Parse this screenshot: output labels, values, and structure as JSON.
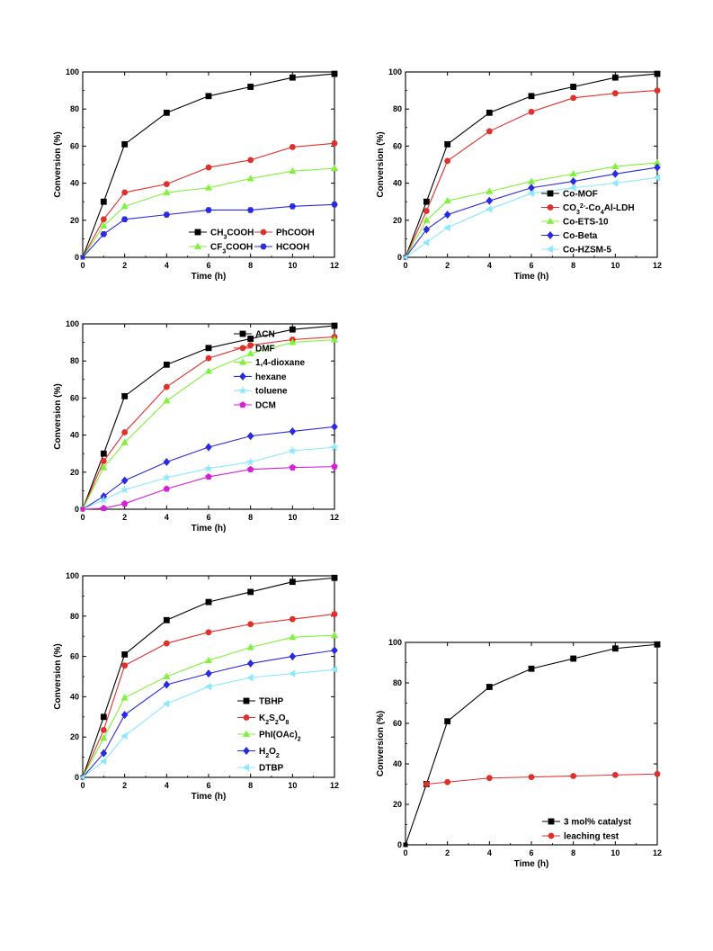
{
  "chart_data": [
    {
      "type": "line",
      "xlabel": "Time (h)",
      "ylabel": "Conversion (%)",
      "xlim": [
        0,
        12
      ],
      "ylim": [
        0,
        100
      ],
      "xticks": [
        "0",
        "2",
        "4",
        "6",
        "8",
        "10",
        "12"
      ],
      "yticks": [
        "0",
        "20",
        "40",
        "60",
        "80",
        "100"
      ],
      "legend_position": "bottom-right",
      "legend_columns": 2,
      "x": [
        0,
        1,
        2,
        4,
        6,
        8,
        10,
        12
      ],
      "series": [
        {
          "name": "CH3COOH",
          "label_parts": [
            [
              "CH",
              ""
            ],
            [
              "3",
              "sub"
            ],
            [
              "COOH",
              ""
            ]
          ],
          "color": "#000000",
          "marker": "square",
          "values": [
            0,
            30,
            61,
            78,
            87,
            92,
            97,
            99
          ]
        },
        {
          "name": "PhCOOH",
          "label_parts": [
            [
              "PhCOOH",
              ""
            ]
          ],
          "color": "#e0302b",
          "marker": "circle",
          "values": [
            0,
            20.5,
            35,
            39.5,
            48.5,
            52.5,
            59.5,
            61.5
          ]
        },
        {
          "name": "CF3COOH",
          "label_parts": [
            [
              "CF",
              ""
            ],
            [
              "3",
              "sub"
            ],
            [
              "COOH",
              ""
            ]
          ],
          "color": "#7ff23a",
          "marker": "triangle",
          "values": [
            0,
            17,
            27.5,
            35,
            37.5,
            42.5,
            46.5,
            48
          ]
        },
        {
          "name": "HCOOH",
          "label_parts": [
            [
              "HCOOH",
              ""
            ]
          ],
          "color": "#2a2ae0",
          "marker": "hexagon",
          "values": [
            0,
            12.5,
            20.5,
            23,
            25.5,
            25.5,
            27.5,
            28.5
          ]
        }
      ]
    },
    {
      "type": "line",
      "xlabel": "Time (h)",
      "ylabel": "Conversion (%)",
      "xlim": [
        0,
        12
      ],
      "ylim": [
        0,
        100
      ],
      "xticks": [
        "0",
        "2",
        "4",
        "6",
        "8",
        "10",
        "12"
      ],
      "yticks": [
        "0",
        "20",
        "40",
        "60",
        "80",
        "100"
      ],
      "legend_position": "bottom-right",
      "legend_columns": 1,
      "x": [
        0,
        1,
        2,
        4,
        6,
        8,
        10,
        12
      ],
      "series": [
        {
          "name": "Co-MOF",
          "label_parts": [
            [
              "Co-MOF",
              ""
            ]
          ],
          "color": "#000000",
          "marker": "square",
          "values": [
            0,
            30,
            61,
            78,
            87,
            92,
            97,
            99
          ]
        },
        {
          "name": "CO32--Co4Al-LDH",
          "label_parts": [
            [
              "CO",
              ""
            ],
            [
              "3",
              "sub"
            ],
            [
              "2-",
              "sup"
            ],
            [
              "-Co",
              ""
            ],
            [
              "4",
              "sub"
            ],
            [
              "Al-LDH",
              ""
            ]
          ],
          "color": "#e0302b",
          "marker": "circle",
          "values": [
            0,
            25,
            52,
            68,
            78.5,
            86,
            88.5,
            90
          ]
        },
        {
          "name": "Co-ETS-10",
          "label_parts": [
            [
              "Co-ETS-10",
              ""
            ]
          ],
          "color": "#7ff23a",
          "marker": "triangle",
          "values": [
            0,
            20,
            30.5,
            35.5,
            41,
            45,
            49,
            51
          ]
        },
        {
          "name": "Co-Beta",
          "label_parts": [
            [
              "Co-Beta",
              ""
            ]
          ],
          "color": "#2a2ae0",
          "marker": "diamond",
          "values": [
            0,
            15,
            23,
            30.5,
            37.5,
            41,
            45,
            48.5
          ]
        },
        {
          "name": "Co-HZSM-5",
          "label_parts": [
            [
              "Co-HZSM-5",
              ""
            ]
          ],
          "color": "#8ae8ff",
          "marker": "triangle-left",
          "values": [
            0,
            8,
            16,
            26,
            34.5,
            37.5,
            40,
            43
          ]
        }
      ]
    },
    {
      "type": "line",
      "xlabel": "Time (h)",
      "ylabel": "Conversion (%)",
      "xlim": [
        0,
        12
      ],
      "ylim": [
        0,
        100
      ],
      "xticks": [
        "0",
        "2",
        "4",
        "6",
        "8",
        "10",
        "12"
      ],
      "yticks": [
        "0",
        "20",
        "40",
        "60",
        "80",
        "100"
      ],
      "legend_position": "top-right",
      "legend_columns": 1,
      "x": [
        0,
        1,
        2,
        4,
        6,
        8,
        10,
        12
      ],
      "series": [
        {
          "name": "ACN",
          "label_parts": [
            [
              "ACN",
              ""
            ]
          ],
          "color": "#000000",
          "marker": "square",
          "values": [
            0,
            30,
            61,
            78,
            87,
            92,
            97,
            99
          ]
        },
        {
          "name": "DMF",
          "label_parts": [
            [
              "DMF",
              ""
            ]
          ],
          "color": "#e0302b",
          "marker": "circle",
          "values": [
            0,
            26,
            41.5,
            66,
            81.5,
            88.5,
            91.5,
            93
          ]
        },
        {
          "name": "1,4-dioxane",
          "label_parts": [
            [
              "1,4-dioxane",
              ""
            ]
          ],
          "color": "#7ff23a",
          "marker": "triangle",
          "values": [
            0,
            22.5,
            36,
            58.5,
            74.5,
            84,
            90,
            91.5
          ]
        },
        {
          "name": "hexane",
          "label_parts": [
            [
              "hexane",
              ""
            ]
          ],
          "color": "#2a2ae0",
          "marker": "diamond",
          "values": [
            0,
            7,
            15.5,
            25.5,
            33.5,
            39.5,
            42,
            44.5
          ]
        },
        {
          "name": "toluene",
          "label_parts": [
            [
              "toluene",
              ""
            ]
          ],
          "color": "#8ae8ff",
          "marker": "star",
          "values": [
            0,
            5,
            10.5,
            17,
            22,
            25.5,
            31.5,
            33.5
          ]
        },
        {
          "name": "DCM",
          "label_parts": [
            [
              "DCM",
              ""
            ]
          ],
          "color": "#d81fd8",
          "marker": "pentagon",
          "values": [
            0,
            0.5,
            3,
            11,
            17.5,
            21.5,
            22.5,
            23
          ]
        }
      ]
    },
    {
      "type": "line",
      "xlabel": "Time (h)",
      "ylabel": "Conversion (%)",
      "xlim": [
        0,
        12
      ],
      "ylim": [
        0,
        100
      ],
      "xticks": [
        "0",
        "2",
        "4",
        "6",
        "8",
        "10",
        "12"
      ],
      "yticks": [
        "0",
        "20",
        "40",
        "60",
        "80",
        "100"
      ],
      "legend_position": "bottom-right",
      "legend_columns": 1,
      "x": [
        0,
        1,
        2,
        4,
        6,
        8,
        10,
        12
      ],
      "series": [
        {
          "name": "TBHP",
          "label_parts": [
            [
              "TBHP",
              ""
            ]
          ],
          "color": "#000000",
          "marker": "square",
          "values": [
            0,
            30,
            61,
            78,
            87,
            92,
            97,
            99
          ]
        },
        {
          "name": "K2S2O8",
          "label_parts": [
            [
              "K",
              ""
            ],
            [
              "2",
              "sub"
            ],
            [
              "S",
              ""
            ],
            [
              "2",
              "sub"
            ],
            [
              "O",
              ""
            ],
            [
              "8",
              "sub"
            ]
          ],
          "color": "#e0302b",
          "marker": "circle",
          "values": [
            0,
            23.5,
            55.5,
            66.5,
            72,
            76,
            78.5,
            81
          ]
        },
        {
          "name": "PhI(OAc)2",
          "label_parts": [
            [
              "PhI(OAc)",
              ""
            ],
            [
              "2",
              "sub"
            ]
          ],
          "color": "#7ff23a",
          "marker": "triangle",
          "values": [
            0,
            19.5,
            39.5,
            50,
            58,
            64.5,
            69.5,
            70.5
          ]
        },
        {
          "name": "H2O2",
          "label_parts": [
            [
              "H",
              ""
            ],
            [
              "2",
              "sub"
            ],
            [
              "O",
              ""
            ],
            [
              "2",
              "sub"
            ]
          ],
          "color": "#2a2ae0",
          "marker": "diamond",
          "values": [
            0,
            12,
            31,
            46,
            51.5,
            56.5,
            60,
            63
          ]
        },
        {
          "name": "DTBP",
          "label_parts": [
            [
              "DTBP",
              ""
            ]
          ],
          "color": "#8ae8ff",
          "marker": "triangle-left",
          "values": [
            0,
            8,
            20.5,
            36.5,
            45,
            49.5,
            51.5,
            53.5
          ]
        }
      ]
    },
    {
      "type": "line",
      "xlabel": "Time (h)",
      "ylabel": "Conversion (%)",
      "xlim": [
        0,
        12
      ],
      "ylim": [
        0,
        100
      ],
      "xticks": [
        "0",
        "2",
        "4",
        "6",
        "8",
        "10",
        "12"
      ],
      "yticks": [
        "0",
        "20",
        "40",
        "60",
        "80",
        "100"
      ],
      "legend_position": "bottom-right",
      "legend_columns": 1,
      "series": [
        {
          "name": "3 mol% catalyst",
          "label_parts": [
            [
              "3 mol% catalyst",
              ""
            ]
          ],
          "color": "#000000",
          "marker": "square",
          "x": [
            0,
            1,
            2,
            4,
            6,
            8,
            10,
            12
          ],
          "values": [
            0,
            30,
            61,
            78,
            87,
            92,
            97,
            99
          ]
        },
        {
          "name": "leaching test",
          "label_parts": [
            [
              "leaching test",
              ""
            ]
          ],
          "color": "#e0302b",
          "marker": "circle",
          "x": [
            1,
            2,
            4,
            6,
            8,
            10,
            12
          ],
          "values": [
            30,
            31,
            33,
            33.5,
            34,
            34.5,
            35
          ]
        }
      ]
    }
  ]
}
